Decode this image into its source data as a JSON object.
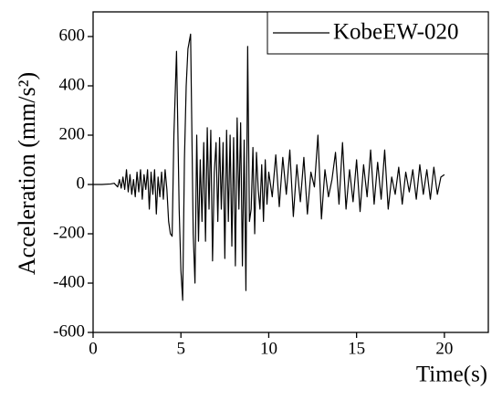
{
  "chart_data": {
    "type": "line",
    "xlabel": "Time(s)",
    "ylabel": "Acceleration (mm/s²)",
    "x": [
      0,
      0.5,
      1,
      1.2,
      1.4,
      1.5,
      1.6,
      1.7,
      1.8,
      1.9,
      2.0,
      2.1,
      2.2,
      2.3,
      2.4,
      2.5,
      2.6,
      2.7,
      2.8,
      2.9,
      3.0,
      3.1,
      3.2,
      3.3,
      3.4,
      3.5,
      3.6,
      3.7,
      3.8,
      3.9,
      4.0,
      4.1,
      4.2,
      4.3,
      4.4,
      4.5,
      4.6,
      4.75,
      4.9,
      5.0,
      5.1,
      5.2,
      5.3,
      5.4,
      5.55,
      5.7,
      5.8,
      5.9,
      6.0,
      6.1,
      6.2,
      6.3,
      6.4,
      6.5,
      6.6,
      6.7,
      6.8,
      6.9,
      7.0,
      7.1,
      7.2,
      7.3,
      7.4,
      7.5,
      7.6,
      7.7,
      7.8,
      7.9,
      8.0,
      8.1,
      8.2,
      8.3,
      8.4,
      8.5,
      8.6,
      8.7,
      8.8,
      8.9,
      9.0,
      9.1,
      9.2,
      9.3,
      9.4,
      9.5,
      9.6,
      9.7,
      9.8,
      9.9,
      10.0,
      10.2,
      10.4,
      10.6,
      10.8,
      11.0,
      11.2,
      11.4,
      11.6,
      11.8,
      12.0,
      12.2,
      12.4,
      12.6,
      12.8,
      13.0,
      13.2,
      13.4,
      13.6,
      13.8,
      14.0,
      14.2,
      14.4,
      14.6,
      14.8,
      15.0,
      15.2,
      15.4,
      15.6,
      15.8,
      16.0,
      16.2,
      16.4,
      16.6,
      16.8,
      17.0,
      17.2,
      17.4,
      17.6,
      17.8,
      18.0,
      18.2,
      18.4,
      18.6,
      18.8,
      19.0,
      19.2,
      19.4,
      19.6,
      19.8,
      20.0
    ],
    "series": [
      {
        "name": "KobeEW-020",
        "color": "#000000",
        "values": [
          0,
          0,
          2,
          5,
          -10,
          20,
          -15,
          30,
          -20,
          60,
          -30,
          40,
          -40,
          20,
          -50,
          50,
          -30,
          60,
          -60,
          40,
          -20,
          60,
          -100,
          50,
          -40,
          60,
          -120,
          30,
          -50,
          50,
          -60,
          60,
          -20,
          -150,
          -200,
          -210,
          200,
          540,
          -100,
          -350,
          -470,
          100,
          400,
          550,
          610,
          -200,
          -400,
          200,
          -230,
          100,
          -150,
          170,
          -230,
          230,
          -100,
          220,
          -310,
          50,
          170,
          -150,
          190,
          -100,
          170,
          -300,
          220,
          -150,
          200,
          -250,
          190,
          -330,
          270,
          -100,
          250,
          -330,
          180,
          -430,
          560,
          -150,
          -100,
          150,
          -200,
          130,
          -20,
          -100,
          80,
          -150,
          100,
          -80,
          50,
          -50,
          120,
          -90,
          110,
          -40,
          140,
          -130,
          80,
          -70,
          110,
          -120,
          50,
          -10,
          200,
          -140,
          60,
          -50,
          20,
          130,
          -80,
          170,
          -100,
          60,
          -70,
          100,
          -110,
          80,
          -50,
          140,
          -80,
          90,
          -60,
          140,
          -100,
          30,
          -40,
          70,
          -80,
          50,
          -30,
          60,
          -60,
          80,
          -40,
          60,
          -60,
          70,
          -40,
          30,
          40
        ]
      }
    ],
    "xlim": [
      0,
      22.5
    ],
    "xticks": [
      0,
      5,
      10,
      15,
      20
    ],
    "ylim": [
      -600,
      700
    ],
    "yticks": [
      -600,
      -400,
      -200,
      0,
      200,
      400,
      600
    ],
    "legend": "upper right"
  }
}
